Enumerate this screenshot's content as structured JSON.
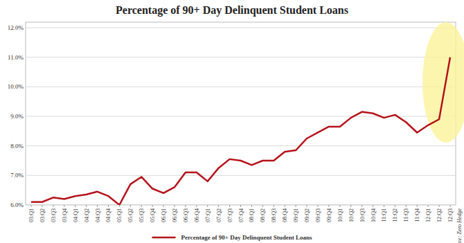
{
  "chart_data": {
    "type": "line",
    "title": "Percentage of 90+ Day Delinquent Student Loans",
    "categories": [
      "03:Q1",
      "03:Q2",
      "03:Q3",
      "03:Q4",
      "04:Q1",
      "04:Q2",
      "04:Q3",
      "04:Q4",
      "05:Q1",
      "05:Q2",
      "05:Q3",
      "05:Q4",
      "06:Q1",
      "06:Q2",
      "06:Q3",
      "06:Q4",
      "07:Q1",
      "07:Q2",
      "07:Q3",
      "07:Q4",
      "08:Q1",
      "08:Q2",
      "08:Q3",
      "08:Q4",
      "09:Q1",
      "09:Q2",
      "09:Q3",
      "09:Q4",
      "10:Q1",
      "10:Q2",
      "10:Q3",
      "10:Q4",
      "11:Q1",
      "11:Q2",
      "11:Q3",
      "11:Q4",
      "12:Q1",
      "12:Q2",
      "12:Q3"
    ],
    "series": [
      {
        "name": "Percentage of 90+ Day Delinquent Student Loans",
        "color": "#b5121b",
        "values": [
          6.1,
          6.1,
          6.25,
          6.2,
          6.3,
          6.35,
          6.45,
          6.3,
          6.0,
          6.7,
          6.95,
          6.55,
          6.4,
          6.6,
          7.1,
          7.1,
          6.8,
          7.25,
          7.55,
          7.5,
          7.35,
          7.5,
          7.5,
          7.8,
          7.85,
          8.25,
          8.45,
          8.65,
          8.65,
          8.95,
          9.15,
          9.1,
          8.95,
          9.05,
          8.8,
          8.45,
          8.7,
          8.9,
          11.0
        ]
      }
    ],
    "ylim": [
      6,
      12
    ],
    "yticks": [
      {
        "value": 6,
        "label": "6.0%"
      },
      {
        "value": 7,
        "label": "7.0%"
      },
      {
        "value": 8,
        "label": "8.0%"
      },
      {
        "value": 9,
        "label": "9.0%"
      },
      {
        "value": 10,
        "label": "10.0%"
      },
      {
        "value": 11,
        "label": "11.0%"
      },
      {
        "value": 12,
        "label": "12.0%"
      }
    ],
    "grid": true,
    "legend": "bottom",
    "source": "Source: Zero Hedge"
  }
}
